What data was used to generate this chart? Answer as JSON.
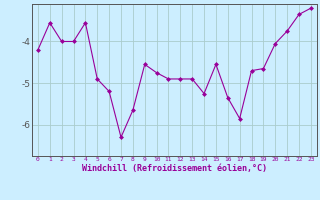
{
  "x": [
    0,
    1,
    2,
    3,
    4,
    5,
    6,
    7,
    8,
    9,
    10,
    11,
    12,
    13,
    14,
    15,
    16,
    17,
    18,
    19,
    20,
    21,
    22,
    23
  ],
  "y": [
    -4.2,
    -3.55,
    -4.0,
    -4.0,
    -3.55,
    -4.9,
    -5.2,
    -6.3,
    -5.65,
    -4.55,
    -4.75,
    -4.9,
    -4.9,
    -4.9,
    -5.25,
    -4.55,
    -5.35,
    -5.85,
    -4.7,
    -4.65,
    -4.05,
    -3.75,
    -3.35,
    -3.2
  ],
  "line_color": "#990099",
  "marker": "D",
  "marker_size": 2.5,
  "bg_color": "#cceeff",
  "grid_color": "#aacccc",
  "axis_color": "#555555",
  "text_color": "#990099",
  "xlabel": "Windchill (Refroidissement éolien,°C)",
  "ylabel_ticks": [
    -6,
    -5,
    -4
  ],
  "xlim": [
    -0.5,
    23.5
  ],
  "ylim": [
    -6.75,
    -3.1
  ]
}
